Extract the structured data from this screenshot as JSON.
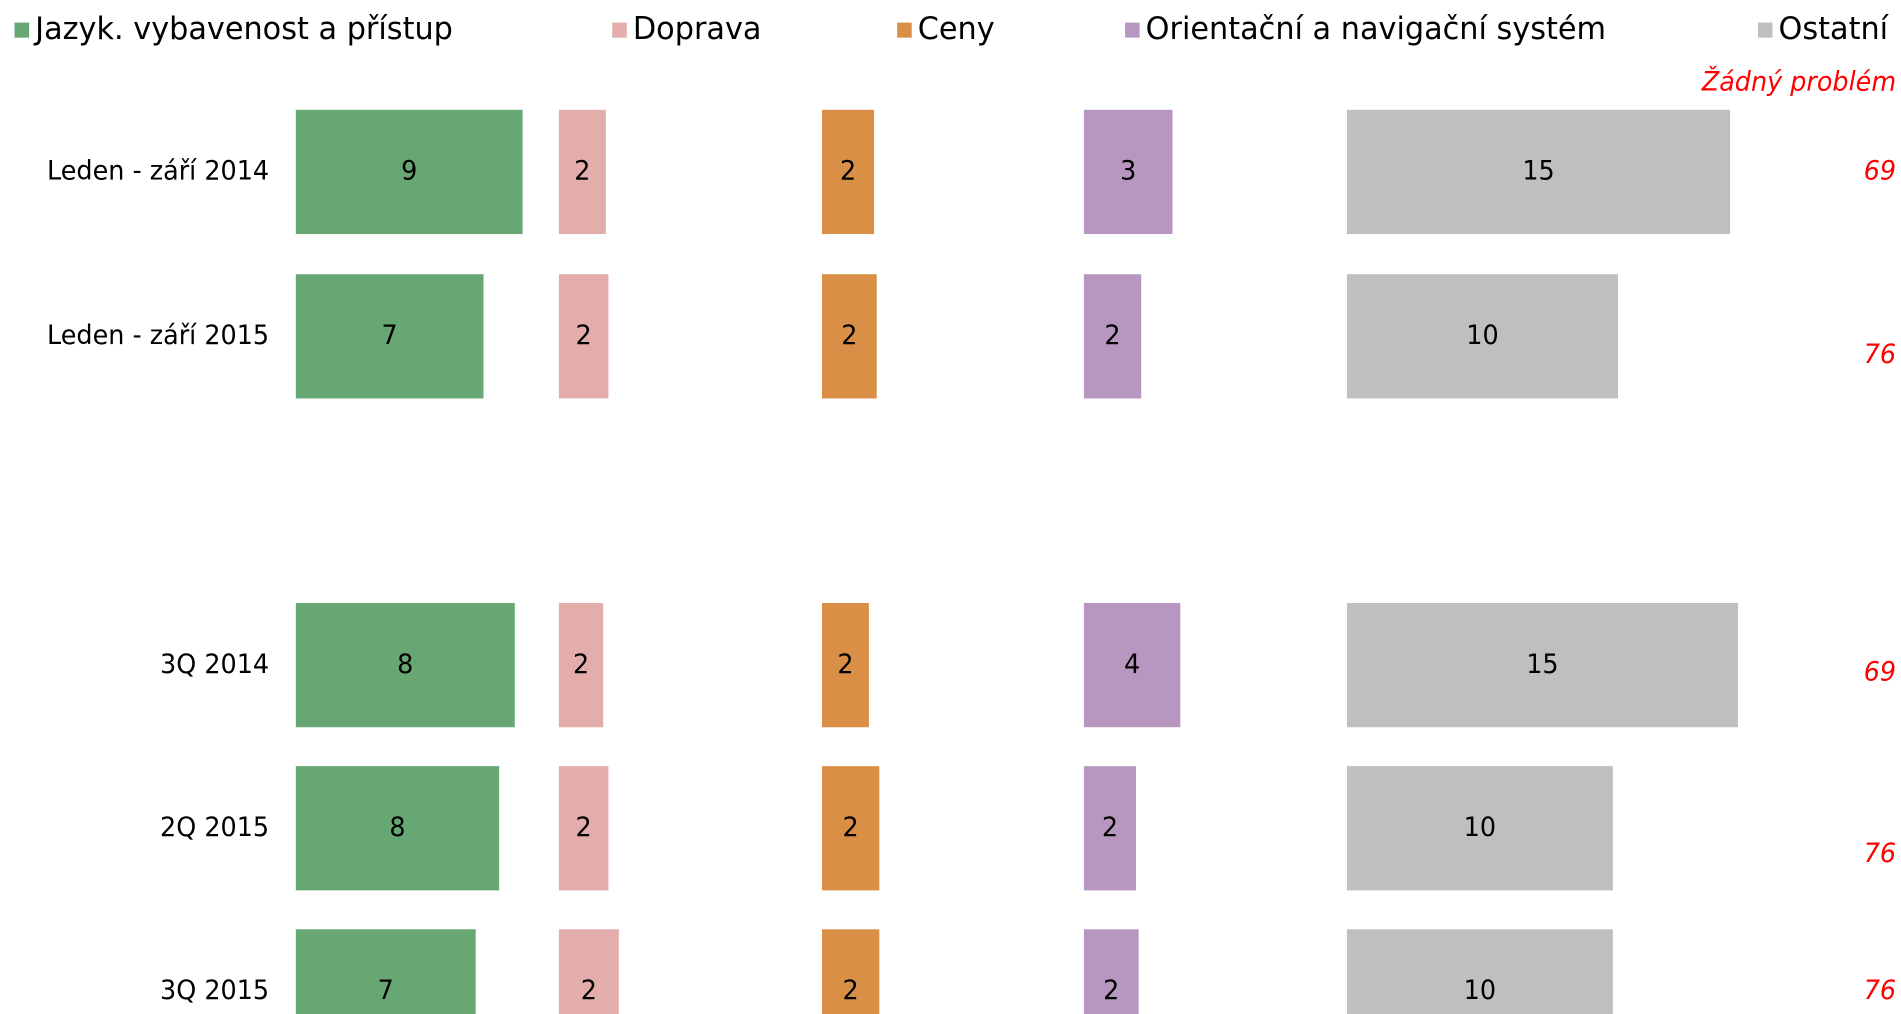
{
  "chart_data": {
    "type": "bar",
    "categories": [
      "Leden - září 2014",
      "Leden - září 2015",
      "3Q 2014",
      "2Q 2015",
      "3Q 2015"
    ],
    "series": [
      {
        "name": "Jazyk. vybavenost a přístup",
        "color": "#66a774",
        "values": [
          8.7,
          7.2,
          8.4,
          7.8,
          6.9
        ],
        "value_labels": [
          "9",
          "7",
          "8",
          "8",
          "7"
        ]
      },
      {
        "name": "Doprava",
        "color": "#e2adab",
        "values": [
          1.8,
          1.9,
          1.7,
          1.9,
          2.3
        ],
        "value_labels": [
          "2",
          "2",
          "2",
          "2",
          "2"
        ]
      },
      {
        "name": "Ceny",
        "color": "#d98f46",
        "values": [
          2.0,
          2.1,
          1.8,
          2.2,
          2.2
        ],
        "value_labels": [
          "2",
          "2",
          "2",
          "2",
          "2"
        ]
      },
      {
        "name": "Orientační a navigační systém",
        "color": "#b797c0",
        "values": [
          3.4,
          2.2,
          3.7,
          2.0,
          2.1
        ],
        "value_labels": [
          "3",
          "2",
          "4",
          "2",
          "2"
        ]
      },
      {
        "name": "Ostatní",
        "color": "#bfbfbf",
        "values": [
          14.7,
          10.4,
          15.0,
          10.2,
          10.2
        ],
        "value_labels": [
          "15",
          "10",
          "15",
          "10",
          "10"
        ]
      }
    ],
    "no_problem": {
      "name": "Žádný problém",
      "values": [
        69,
        76,
        69,
        76,
        76
      ]
    },
    "legend": "top"
  }
}
